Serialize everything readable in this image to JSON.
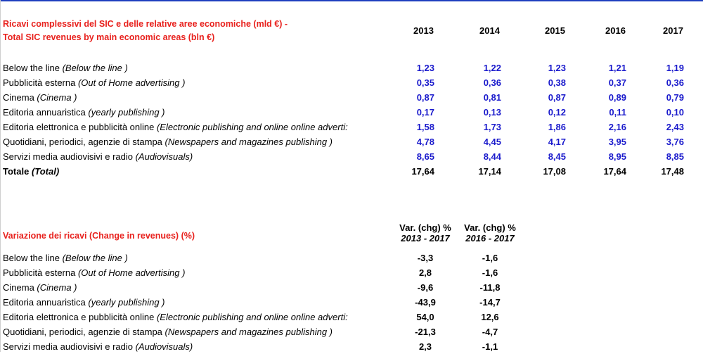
{
  "table1": {
    "title_line1": "Ricavi complessivi del SIC e delle relative aree economiche (mld €) -",
    "title_line2": "Total SIC revenues by main economic areas (bln €)",
    "years": [
      "2013",
      "2014",
      "2015",
      "2016",
      "2017"
    ],
    "rows": [
      {
        "label": "Below the line ",
        "label_en": "(Below the line )",
        "values": [
          "1,23",
          "1,22",
          "1,23",
          "1,21",
          "1,19"
        ]
      },
      {
        "label": "Pubblicità esterna  ",
        "label_en": "(Out of Home advertising )",
        "values": [
          "0,35",
          "0,36",
          "0,38",
          "0,37",
          "0,36"
        ]
      },
      {
        "label": "Cinema ",
        "label_en": "(Cinema )",
        "values": [
          "0,87",
          "0,81",
          "0,87",
          "0,89",
          "0,79"
        ]
      },
      {
        "label": "Editoria annuaristica ",
        "label_en": "(yearly publishing )",
        "values": [
          "0,17",
          "0,13",
          "0,12",
          "0,11",
          "0,10"
        ]
      },
      {
        "label": "Editoria elettronica e pubblicità online ",
        "label_en": "(Electronic publishing and online online adverti:",
        "values": [
          "1,58",
          "1,73",
          "1,86",
          "2,16",
          "2,43"
        ]
      },
      {
        "label": "Quotidiani, periodici, agenzie di stampa ",
        "label_en": "(Newspapers and magazines publishing )",
        "values": [
          "4,78",
          "4,45",
          "4,17",
          "3,95",
          "3,76"
        ]
      },
      {
        "label": "Servizi media audiovisivi e radio ",
        "label_en": "(Audiovisuals)",
        "values": [
          "8,65",
          "8,44",
          "8,45",
          "8,95",
          "8,85"
        ]
      }
    ],
    "total": {
      "label": "Totale ",
      "label_en": "(Total)",
      "values": [
        "17,64",
        "17,14",
        "17,08",
        "17,64",
        "17,48"
      ]
    }
  },
  "table2": {
    "title": "Variazione dei ricavi (Change in revenues) (%)",
    "col_header_line1": [
      "Var.  (chg) %",
      "Var.  (chg) %"
    ],
    "col_header_line2": [
      "2013 - 2017",
      "2016 - 2017"
    ],
    "rows": [
      {
        "label": "Below the line ",
        "label_en": "(Below the line )",
        "values": [
          "-3,3",
          "-1,6"
        ]
      },
      {
        "label": "Pubblicità esterna  ",
        "label_en": "(Out of Home advertising )",
        "values": [
          "2,8",
          "-1,6"
        ]
      },
      {
        "label": "Cinema ",
        "label_en": "(Cinema )",
        "values": [
          "-9,6",
          "-11,8"
        ]
      },
      {
        "label": "Editoria annuaristica ",
        "label_en": "(yearly publishing )",
        "values": [
          "-43,9",
          "-14,7"
        ]
      },
      {
        "label": "Editoria elettronica e pubblicità online ",
        "label_en": "(Electronic publishing and online online adverti:",
        "values": [
          "54,0",
          "12,6"
        ]
      },
      {
        "label": "Quotidiani, periodici, agenzie di stampa ",
        "label_en": "(Newspapers and magazines publishing )",
        "values": [
          "-21,3",
          "-4,7"
        ]
      },
      {
        "label": "Servizi media audiovisivi e radio ",
        "label_en": "(Audiovisuals)",
        "values": [
          "2,3",
          "-1,1"
        ]
      }
    ]
  },
  "colors": {
    "title_red": "#e8211d",
    "value_blue": "#1a1acc",
    "top_border": "#1f3fbf"
  }
}
